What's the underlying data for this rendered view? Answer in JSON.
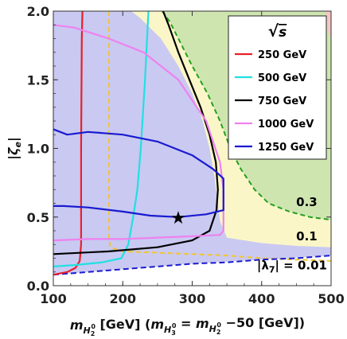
{
  "chart_data": {
    "type": "line",
    "x_axis": {
      "range": [
        100,
        500
      ],
      "ticks": [
        100,
        200,
        300,
        400,
        500
      ],
      "label_parts": [
        "m",
        "H",
        "2",
        "0",
        " [GeV] (",
        "m",
        "H",
        "3",
        "0",
        " = ",
        "m",
        "H",
        "2",
        "0",
        " −50 [GeV])"
      ]
    },
    "y_axis": {
      "range": [
        0,
        2
      ],
      "ticks": [
        "0.0",
        "0.5",
        "1.0",
        "1.5",
        "2.0"
      ],
      "label_parts": [
        "|",
        "ζ",
        "e",
        "|"
      ]
    },
    "legend": {
      "title_root": "√",
      "title_var": "s",
      "placement": "top-right",
      "entries": [
        {
          "label": "250 GeV",
          "color": "#e8202a"
        },
        {
          "label": "500 GeV",
          "color": "#22e0e0"
        },
        {
          "label": "750 GeV",
          "color": "#000000"
        },
        {
          "label": "1000 GeV",
          "color": "#ee82ee"
        },
        {
          "label": "1250 GeV",
          "color": "#1a1ad0"
        }
      ]
    },
    "region_labels": [
      {
        "text": "0.3",
        "x": 465,
        "y": 0.58
      },
      {
        "text": "0.1",
        "x": 465,
        "y": 0.33
      }
    ],
    "lambda_label": {
      "pre": "|λ",
      "sub": "7",
      "post": "| = 0.01",
      "x": 500,
      "y": 0.12
    },
    "benchmark_point": {
      "x": 280,
      "y": 0.5,
      "symbol": "★"
    },
    "colors": {
      "blue_region": "#c9c9f2",
      "yellow_region": "#fbf6c8",
      "green_region": "#cfe5b0",
      "pink_region": "#f5c6c6",
      "dashed_yellow": "#f2c530",
      "dashed_green": "#22a020",
      "dashed_blue": "#1a1ad0"
    },
    "regions": {
      "blue": [
        [
          100,
          0.08
        ],
        [
          100,
          2.0
        ],
        [
          500,
          2.0
        ],
        [
          500,
          0.22
        ],
        [
          470,
          0.21
        ],
        [
          400,
          0.19
        ],
        [
          300,
          0.16
        ],
        [
          200,
          0.12
        ],
        [
          150,
          0.1
        ]
      ],
      "yellow": [
        [
          180,
          2.0
        ],
        [
          500,
          2.0
        ],
        [
          500,
          0.28
        ],
        [
          450,
          0.29
        ],
        [
          400,
          0.31
        ],
        [
          350,
          0.35
        ],
        [
          340,
          0.47
        ],
        [
          337,
          0.6
        ],
        [
          332,
          0.8
        ],
        [
          325,
          1.0
        ],
        [
          315,
          1.2
        ],
        [
          300,
          1.4
        ],
        [
          280,
          1.6
        ],
        [
          255,
          1.8
        ],
        [
          225,
          1.95
        ],
        [
          212,
          2.0
        ]
      ],
      "green": [
        [
          257,
          2.0
        ],
        [
          500,
          2.0
        ],
        [
          500,
          0.48
        ],
        [
          470,
          0.5
        ],
        [
          440,
          0.54
        ],
        [
          410,
          0.6
        ],
        [
          390,
          0.7
        ],
        [
          370,
          0.85
        ],
        [
          355,
          1.0
        ],
        [
          340,
          1.2
        ],
        [
          322,
          1.4
        ],
        [
          300,
          1.6
        ],
        [
          280,
          1.8
        ],
        [
          268,
          1.92
        ]
      ],
      "pink": [
        [
          492,
          2.0
        ],
        [
          500,
          2.0
        ],
        [
          500,
          1.8
        ],
        [
          495,
          1.86
        ]
      ]
    },
    "dashed_boundaries": {
      "yellow": [
        [
          180,
          2.0
        ],
        [
          180,
          0.35
        ],
        [
          182,
          0.28
        ],
        [
          200,
          0.25
        ],
        [
          250,
          0.24
        ],
        [
          300,
          0.23
        ],
        [
          350,
          0.22
        ],
        [
          400,
          0.2
        ],
        [
          450,
          0.19
        ],
        [
          500,
          0.18
        ]
      ],
      "green": [
        [
          257,
          2.0
        ],
        [
          268,
          1.92
        ],
        [
          280,
          1.8
        ],
        [
          300,
          1.6
        ],
        [
          322,
          1.4
        ],
        [
          340,
          1.2
        ],
        [
          355,
          1.0
        ],
        [
          370,
          0.85
        ],
        [
          390,
          0.7
        ],
        [
          410,
          0.6
        ],
        [
          440,
          0.54
        ],
        [
          470,
          0.5
        ],
        [
          500,
          0.48
        ]
      ],
      "blue": [
        [
          100,
          0.08
        ],
        [
          150,
          0.1
        ],
        [
          200,
          0.12
        ],
        [
          250,
          0.14
        ],
        [
          300,
          0.16
        ],
        [
          350,
          0.17
        ],
        [
          400,
          0.19
        ],
        [
          450,
          0.2
        ],
        [
          500,
          0.22
        ]
      ]
    },
    "series": [
      {
        "name": "250 GeV",
        "color": "#e8202a",
        "points": [
          [
            100,
            0.08
          ],
          [
            120,
            0.1
          ],
          [
            132,
            0.13
          ],
          [
            138,
            0.18
          ],
          [
            140,
            0.3
          ],
          [
            140,
            1.0
          ],
          [
            141,
            1.8
          ],
          [
            142,
            2.0
          ]
        ]
      },
      {
        "name": "500 GeV",
        "color": "#22e0e0",
        "points": [
          [
            100,
            0.14
          ],
          [
            130,
            0.15
          ],
          [
            170,
            0.17
          ],
          [
            198,
            0.2
          ],
          [
            208,
            0.3
          ],
          [
            215,
            0.5
          ],
          [
            221,
            0.7
          ],
          [
            226,
            1.0
          ],
          [
            232,
            1.5
          ],
          [
            237,
            2.0
          ]
        ]
      },
      {
        "name": "750 GeV",
        "color": "#000000",
        "points": [
          [
            100,
            0.23
          ],
          [
            180,
            0.25
          ],
          [
            250,
            0.28
          ],
          [
            300,
            0.33
          ],
          [
            325,
            0.4
          ],
          [
            335,
            0.55
          ],
          [
            337,
            0.7
          ],
          [
            334,
            0.9
          ],
          [
            325,
            1.1
          ],
          [
            312,
            1.3
          ],
          [
            296,
            1.5
          ],
          [
            280,
            1.7
          ],
          [
            266,
            1.9
          ],
          [
            258,
            2.0
          ]
        ]
      },
      {
        "name": "1000 GeV",
        "color": "#ee82ee",
        "points": [
          [
            100,
            1.9
          ],
          [
            130,
            1.88
          ],
          [
            180,
            1.8
          ],
          [
            230,
            1.7
          ],
          [
            280,
            1.5
          ],
          [
            320,
            1.2
          ],
          [
            340,
            0.9
          ],
          [
            345,
            0.7
          ],
          [
            345,
            0.4
          ],
          [
            340,
            0.37
          ],
          [
            300,
            0.36
          ],
          [
            250,
            0.35
          ],
          [
            200,
            0.34
          ],
          [
            150,
            0.34
          ],
          [
            100,
            0.33
          ]
        ]
      },
      {
        "name": "1250 GeV",
        "color": "#1a1ad0",
        "points": [
          [
            100,
            1.14
          ],
          [
            120,
            1.1
          ],
          [
            150,
            1.12
          ],
          [
            200,
            1.1
          ],
          [
            250,
            1.05
          ],
          [
            300,
            0.95
          ],
          [
            330,
            0.85
          ],
          [
            345,
            0.78
          ],
          [
            345,
            0.55
          ],
          [
            320,
            0.52
          ],
          [
            280,
            0.5
          ],
          [
            240,
            0.51
          ],
          [
            200,
            0.54
          ],
          [
            150,
            0.57
          ],
          [
            115,
            0.58
          ],
          [
            100,
            0.58
          ]
        ]
      }
    ]
  }
}
